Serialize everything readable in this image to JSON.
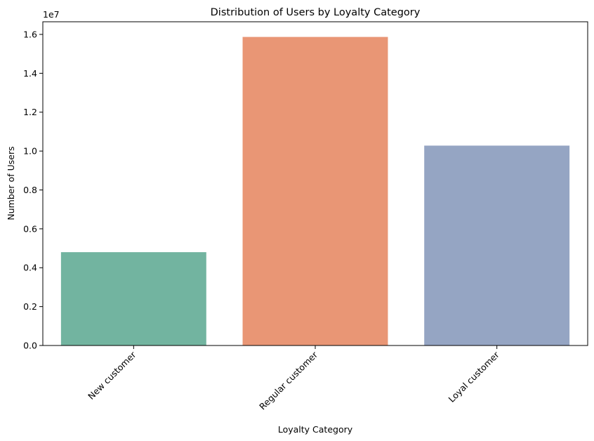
{
  "chart_data": {
    "type": "bar",
    "title": "Distribution of Users by Loyalty Category",
    "xlabel": "Loyalty Category",
    "ylabel": "Number of Users",
    "y_offset_label": "1e7",
    "y_scale": 10000000,
    "categories": [
      "New customer",
      "Regular customer",
      "Loyal customer"
    ],
    "values": [
      4800000,
      15870000,
      10280000
    ],
    "colors": [
      "#72b4a0",
      "#e99675",
      "#95a5c3"
    ],
    "ylim": [
      0,
      16650000
    ],
    "y_ticks": [
      0,
      2000000,
      4000000,
      6000000,
      8000000,
      10000000,
      12000000,
      14000000,
      16000000
    ],
    "y_tick_labels": [
      "0.0",
      "0.2",
      "0.4",
      "0.6",
      "0.8",
      "1.0",
      "1.2",
      "1.4",
      "1.6"
    ],
    "x_tick_rotation": -45,
    "grid": false,
    "legend": "none"
  }
}
